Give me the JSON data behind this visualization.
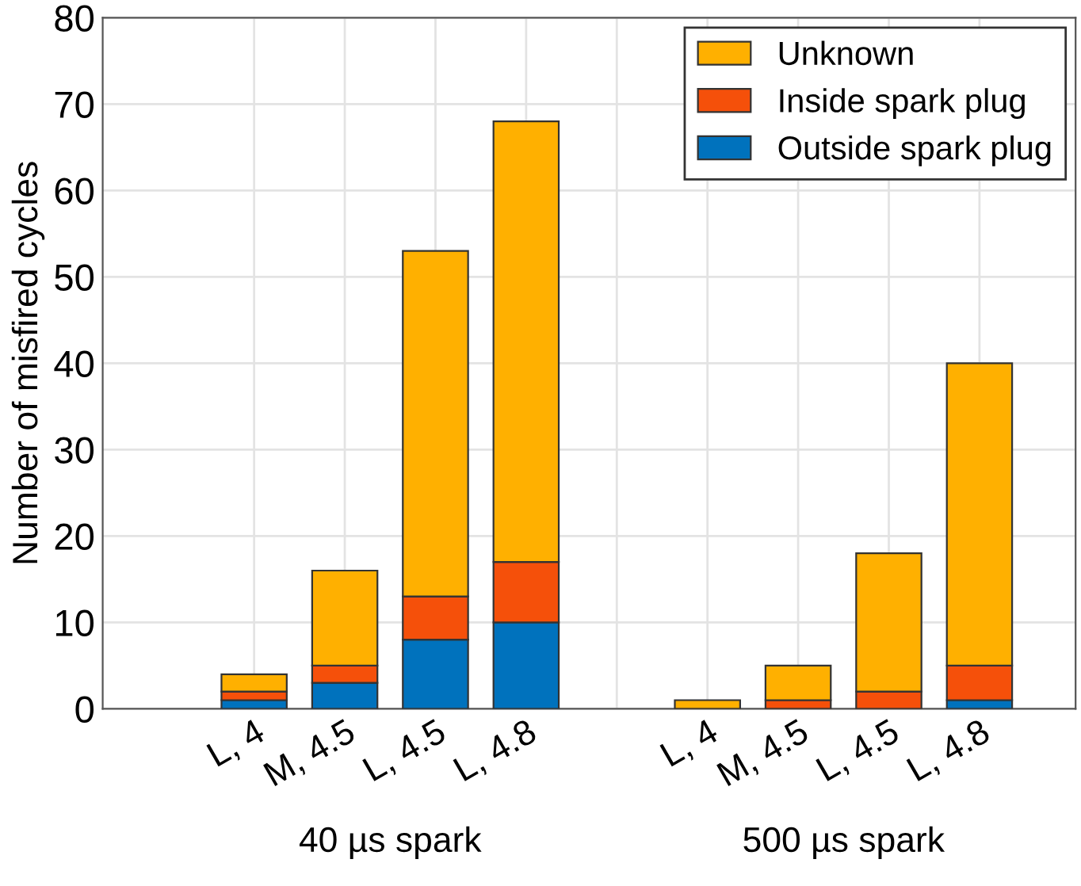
{
  "chart_data": {
    "type": "bar",
    "stacked": true,
    "ylabel": "Number of misfired cycles",
    "categories": [
      "L, 4",
      "M, 4.5",
      "L, 4.5",
      "L, 4.8",
      null,
      "L, 4",
      "M, 4.5",
      "L, 4.5",
      "L, 4.8"
    ],
    "series": [
      {
        "name": "Outside spark plug",
        "color": "#0072bd",
        "values": [
          1,
          3,
          8,
          10,
          null,
          0,
          0,
          0,
          1
        ]
      },
      {
        "name": "Inside spark plug",
        "color": "#f5500a",
        "values": [
          1,
          2,
          5,
          7,
          null,
          0,
          1,
          2,
          4
        ]
      },
      {
        "name": "Unknown",
        "color": "#ffb000",
        "values": [
          2,
          11,
          40,
          51,
          null,
          1,
          4,
          16,
          35
        ]
      }
    ],
    "ylim": [
      0,
      80
    ],
    "yticks": [
      0,
      10,
      20,
      30,
      40,
      50,
      60,
      70,
      80
    ],
    "grid": true,
    "legend": "top right",
    "annotations": [
      "40 µs spark",
      "500 µs spark"
    ]
  }
}
